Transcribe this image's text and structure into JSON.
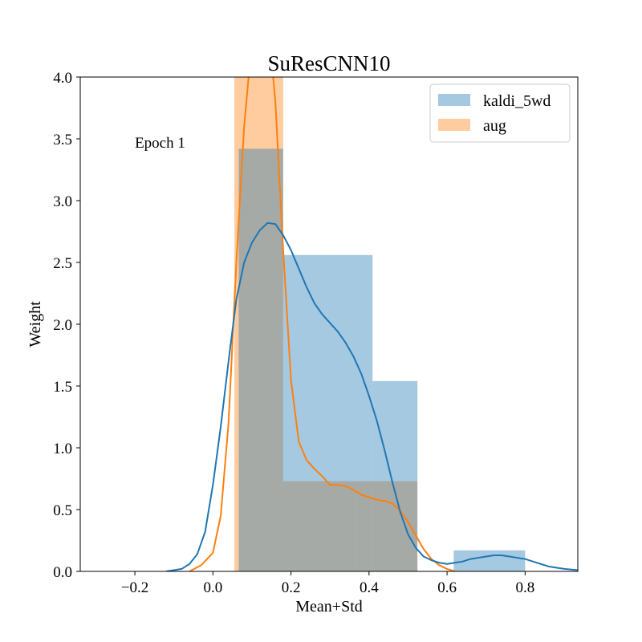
{
  "chart_data": {
    "type": "histogram+kde",
    "title": "SuResCNN10",
    "xlabel": "Mean+Std",
    "ylabel": "Weight",
    "xlim": [
      -0.34,
      0.935
    ],
    "ylim": [
      0,
      4.0
    ],
    "xticks": [
      -0.2,
      0.0,
      0.2,
      0.4,
      0.6,
      0.8
    ],
    "xtick_labels": [
      "−0.2",
      "0.0",
      "0.2",
      "0.4",
      "0.6",
      "0.8"
    ],
    "yticks": [
      0.0,
      0.5,
      1.0,
      1.5,
      2.0,
      2.5,
      3.0,
      3.5,
      4.0
    ],
    "ytick_labels": [
      "0.0",
      "0.5",
      "1.0",
      "1.5",
      "2.0",
      "2.5",
      "3.0",
      "3.5",
      "4.0"
    ],
    "annotation": {
      "text": "Epoch  1",
      "x": -0.2,
      "y": 3.43
    },
    "legend": {
      "position": "top-right"
    },
    "grid": false,
    "series": [
      {
        "name": "aug",
        "color": "#ff7f0e",
        "bar_color": "#ffbe86",
        "bins": [
          {
            "x0": 0.055,
            "x1": 0.118,
            "height": 4.4
          },
          {
            "x0": 0.118,
            "x1": 0.18,
            "height": 4.4
          },
          {
            "x0": 0.18,
            "x1": 0.242,
            "height": 0.73
          },
          {
            "x0": 0.242,
            "x1": 0.305,
            "height": 0.73
          },
          {
            "x0": 0.305,
            "x1": 0.367,
            "height": 0.73
          },
          {
            "x0": 0.367,
            "x1": 0.429,
            "height": 0.73
          },
          {
            "x0": 0.429,
            "x1": 0.492,
            "height": 0.73
          },
          {
            "x0": 0.492,
            "x1": 0.524,
            "height": 0.73
          }
        ],
        "kde": [
          [
            -0.06,
            0.0
          ],
          [
            -0.03,
            0.05
          ],
          [
            0.0,
            0.15
          ],
          [
            0.02,
            0.45
          ],
          [
            0.04,
            1.2
          ],
          [
            0.06,
            2.5
          ],
          [
            0.08,
            3.6
          ],
          [
            0.1,
            4.3
          ],
          [
            0.12,
            4.6
          ],
          [
            0.14,
            4.5
          ],
          [
            0.16,
            3.8
          ],
          [
            0.18,
            2.6
          ],
          [
            0.2,
            1.55
          ],
          [
            0.22,
            1.05
          ],
          [
            0.24,
            0.9
          ],
          [
            0.26,
            0.83
          ],
          [
            0.28,
            0.77
          ],
          [
            0.3,
            0.7
          ],
          [
            0.32,
            0.7
          ],
          [
            0.34,
            0.69
          ],
          [
            0.36,
            0.66
          ],
          [
            0.38,
            0.62
          ],
          [
            0.4,
            0.6
          ],
          [
            0.42,
            0.58
          ],
          [
            0.44,
            0.57
          ],
          [
            0.46,
            0.55
          ],
          [
            0.48,
            0.49
          ],
          [
            0.5,
            0.4
          ],
          [
            0.52,
            0.29
          ],
          [
            0.54,
            0.18
          ],
          [
            0.56,
            0.1
          ],
          [
            0.58,
            0.05
          ],
          [
            0.6,
            0.02
          ],
          [
            0.62,
            0.0
          ]
        ]
      },
      {
        "name": "kaldi_5wd",
        "color": "#1f77b4",
        "bar_color": "#a6c8e2",
        "bins": [
          {
            "x0": 0.066,
            "x1": 0.18,
            "height": 3.42
          },
          {
            "x0": 0.18,
            "x1": 0.295,
            "height": 2.56
          },
          {
            "x0": 0.295,
            "x1": 0.409,
            "height": 2.56
          },
          {
            "x0": 0.409,
            "x1": 0.524,
            "height": 1.54
          },
          {
            "x0": 0.617,
            "x1": 0.8,
            "height": 0.17
          }
        ],
        "kde": [
          [
            -0.12,
            0.0
          ],
          [
            -0.1,
            0.01
          ],
          [
            -0.08,
            0.02
          ],
          [
            -0.06,
            0.06
          ],
          [
            -0.04,
            0.14
          ],
          [
            -0.02,
            0.32
          ],
          [
            0.0,
            0.7
          ],
          [
            0.02,
            1.17
          ],
          [
            0.04,
            1.7
          ],
          [
            0.06,
            2.2
          ],
          [
            0.08,
            2.5
          ],
          [
            0.1,
            2.66
          ],
          [
            0.12,
            2.76
          ],
          [
            0.14,
            2.82
          ],
          [
            0.16,
            2.81
          ],
          [
            0.18,
            2.72
          ],
          [
            0.2,
            2.6
          ],
          [
            0.22,
            2.45
          ],
          [
            0.24,
            2.3
          ],
          [
            0.26,
            2.17
          ],
          [
            0.28,
            2.08
          ],
          [
            0.3,
            2.01
          ],
          [
            0.32,
            1.94
          ],
          [
            0.34,
            1.85
          ],
          [
            0.36,
            1.74
          ],
          [
            0.38,
            1.6
          ],
          [
            0.4,
            1.42
          ],
          [
            0.42,
            1.22
          ],
          [
            0.44,
            0.98
          ],
          [
            0.46,
            0.72
          ],
          [
            0.48,
            0.48
          ],
          [
            0.5,
            0.3
          ],
          [
            0.52,
            0.19
          ],
          [
            0.54,
            0.12
          ],
          [
            0.56,
            0.09
          ],
          [
            0.58,
            0.07
          ],
          [
            0.6,
            0.06
          ],
          [
            0.62,
            0.07
          ],
          [
            0.64,
            0.08
          ],
          [
            0.66,
            0.1
          ],
          [
            0.68,
            0.11
          ],
          [
            0.7,
            0.12
          ],
          [
            0.72,
            0.13
          ],
          [
            0.74,
            0.13
          ],
          [
            0.76,
            0.12
          ],
          [
            0.78,
            0.11
          ],
          [
            0.8,
            0.1
          ],
          [
            0.82,
            0.08
          ],
          [
            0.84,
            0.06
          ],
          [
            0.86,
            0.04
          ],
          [
            0.88,
            0.03
          ],
          [
            0.9,
            0.02
          ],
          [
            0.935,
            0.01
          ]
        ]
      }
    ],
    "legend_order": [
      "kaldi_5wd",
      "aug"
    ]
  }
}
